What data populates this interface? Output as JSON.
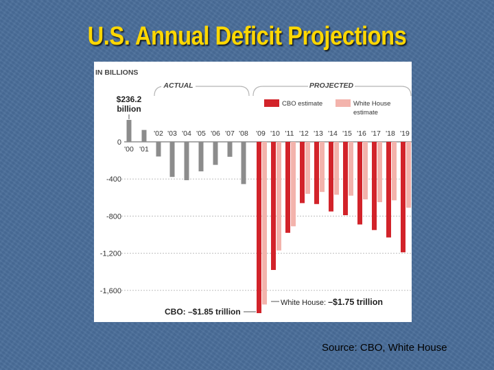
{
  "slide": {
    "title": "U.S. Annual Deficit Projections",
    "source": "Source: CBO, White House"
  },
  "colors": {
    "actual": "#8c8c8c",
    "cbo": "#d2232a",
    "white_house": "#f3b3ac",
    "gridline": "#bdbdbd",
    "bracket": "#b5b5b5"
  },
  "chart_data": {
    "type": "bar",
    "title": "",
    "ylabel": "IN BILLIONS",
    "ylim": [
      -1900,
      300
    ],
    "yticks": [
      "0",
      "-400",
      "-800",
      "-1,200",
      "-1,600"
    ],
    "ytick_values": [
      0,
      -400,
      -800,
      -1200,
      -1600
    ],
    "sections": {
      "actual": "ACTUAL",
      "projected": "PROJECTED"
    },
    "legend": {
      "cbo": "CBO estimate",
      "white_house": [
        "White House",
        "estimate"
      ]
    },
    "actual": {
      "categories": [
        "'00",
        "'01",
        "'02",
        "'03",
        "'04",
        "'05",
        "'06",
        "'07",
        "'08"
      ],
      "values": [
        236.2,
        128,
        -158,
        -378,
        -413,
        -318,
        -248,
        -161,
        -455
      ]
    },
    "projected": {
      "categories": [
        "'09",
        "'10",
        "'11",
        "'12",
        "'13",
        "'14",
        "'15",
        "'16",
        "'17",
        "'18",
        "'19"
      ],
      "series": [
        {
          "name": "CBO estimate",
          "values": [
            -1845,
            -1380,
            -980,
            -660,
            -670,
            -750,
            -790,
            -890,
            -950,
            -1030,
            -1190
          ]
        },
        {
          "name": "White House estimate",
          "values": [
            -1752,
            -1170,
            -910,
            -560,
            -540,
            -570,
            -580,
            -620,
            -650,
            -630,
            -710
          ]
        }
      ]
    },
    "annotations": {
      "surplus_value": "$236.2",
      "surplus_unit": "billion",
      "cbo_total": "CBO: –$1.85 trillion",
      "wh_total_prefix": "White House: ",
      "wh_total_value": "–$1.75 trillion"
    },
    "grid": true
  }
}
